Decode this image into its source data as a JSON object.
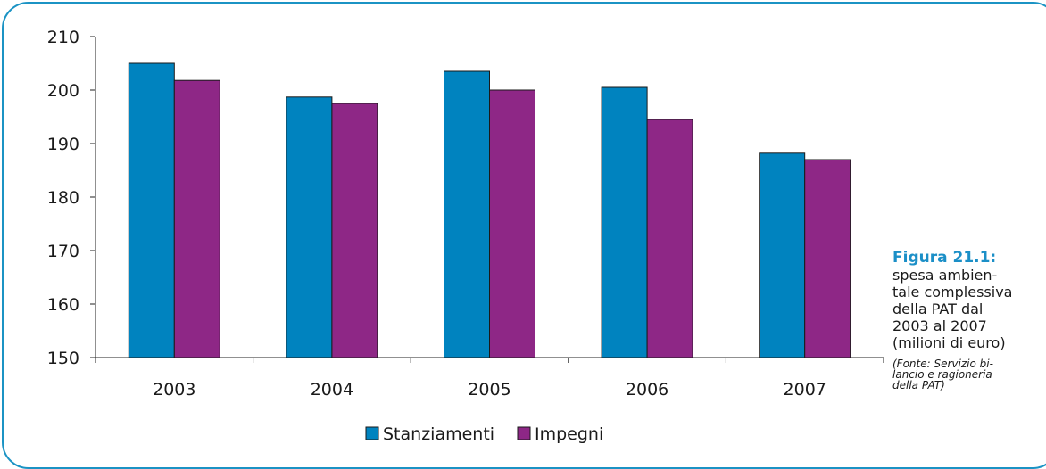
{
  "chart_data": {
    "type": "bar",
    "categories": [
      "2003",
      "2004",
      "2005",
      "2006",
      "2007"
    ],
    "series": [
      {
        "name": "Stanziamenti",
        "values": [
          205.0,
          198.7,
          203.5,
          200.5,
          188.2
        ],
        "color": "#0083bf"
      },
      {
        "name": "Impegni",
        "values": [
          201.8,
          197.5,
          200.0,
          194.5,
          187.0
        ],
        "color": "#8e2786"
      }
    ],
    "ylim": [
      150,
      210
    ],
    "yticks": [
      150,
      160,
      170,
      180,
      190,
      200,
      210
    ],
    "grid": false,
    "legend_position": "bottom-center"
  },
  "caption": {
    "figure_label": "Figura 21.1:",
    "text_lines": [
      "spesa ambien-",
      "tale complessiva",
      "della PAT dal",
      "2003 al 2007",
      "(milioni di euro)"
    ],
    "source_lines": [
      "(Fonte: Servizio bi-",
      "lancio e ragioneria",
      "della PAT)"
    ]
  },
  "colors": {
    "frame_border": "#1b93c4",
    "title_accent": "#1b8fc7"
  }
}
